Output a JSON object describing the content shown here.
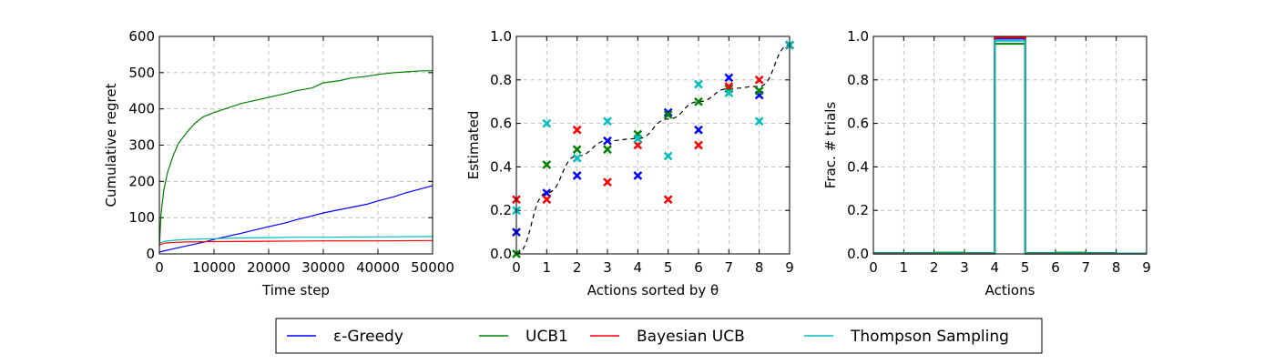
{
  "legend": {
    "entries": [
      {
        "label": "ε-Greedy",
        "color": "#0000ff"
      },
      {
        "label": "UCB1",
        "color": "#008000"
      },
      {
        "label": "Bayesian UCB",
        "color": "#ff0000"
      },
      {
        "label": "Thompson Sampling",
        "color": "#00bfbf"
      }
    ]
  },
  "chart_data": [
    {
      "type": "line",
      "xlabel": "Time step",
      "ylabel": "Cumulative regret",
      "xlim": [
        0,
        50000
      ],
      "ylim": [
        0,
        600
      ],
      "xticks": [
        0,
        10000,
        20000,
        30000,
        40000,
        50000
      ],
      "yticks": [
        0,
        100,
        200,
        300,
        400,
        500,
        600
      ],
      "grid": true,
      "series": [
        {
          "name": "ε-Greedy",
          "color": "#0000ff",
          "x": [
            0,
            2000,
            5000,
            8000,
            10000,
            12000,
            15000,
            18000,
            20000,
            23000,
            25000,
            28000,
            30000,
            33000,
            35000,
            38000,
            40000,
            43000,
            45000,
            48000,
            50000
          ],
          "y": [
            5,
            12,
            22,
            32,
            40,
            47,
            57,
            68,
            75,
            85,
            94,
            105,
            113,
            122,
            128,
            137,
            146,
            158,
            168,
            180,
            188
          ]
        },
        {
          "name": "UCB1",
          "color": "#008000",
          "x": [
            0,
            300,
            800,
            1500,
            2500,
            3500,
            5000,
            6500,
            8000,
            10000,
            12000,
            15000,
            18000,
            20000,
            23000,
            25000,
            28000,
            30000,
            33000,
            35000,
            38000,
            40000,
            43000,
            45000,
            48000,
            50000
          ],
          "y": [
            20,
            110,
            175,
            225,
            270,
            305,
            335,
            360,
            378,
            390,
            400,
            415,
            425,
            432,
            442,
            450,
            458,
            472,
            478,
            485,
            490,
            495,
            500,
            502,
            505,
            505
          ]
        },
        {
          "name": "Bayesian UCB",
          "color": "#ff0000",
          "x": [
            0,
            1000,
            3000,
            5000,
            10000,
            20000,
            30000,
            40000,
            50000
          ],
          "y": [
            25,
            30,
            32,
            33,
            34,
            35,
            36,
            36,
            37
          ]
        },
        {
          "name": "Thompson Sampling",
          "color": "#00bfbf",
          "x": [
            0,
            1000,
            3000,
            5000,
            10000,
            15000,
            20000,
            25000,
            30000,
            40000,
            50000
          ],
          "y": [
            30,
            35,
            38,
            40,
            42,
            44,
            45,
            46,
            46,
            47,
            48
          ]
        }
      ]
    },
    {
      "type": "scatter",
      "xlabel": "Actions sorted by θ",
      "ylabel": "Estimated",
      "xlim": [
        0,
        9
      ],
      "ylim": [
        0,
        1.0
      ],
      "xticks": [
        0,
        1,
        2,
        3,
        4,
        5,
        6,
        7,
        8,
        9
      ],
      "yticks": [
        0.0,
        0.2,
        0.4,
        0.6,
        0.8,
        1.0
      ],
      "grid": true,
      "true_theta": {
        "x": [
          0,
          1,
          2,
          3,
          4,
          5,
          6,
          7,
          8,
          9
        ],
        "y": [
          0.0,
          0.28,
          0.45,
          0.52,
          0.53,
          0.62,
          0.7,
          0.76,
          0.77,
          0.96
        ]
      },
      "series": [
        {
          "name": "ε-Greedy",
          "color": "#0000ff",
          "x": [
            0,
            1,
            2,
            3,
            4,
            5,
            6,
            7,
            8,
            9
          ],
          "y": [
            0.1,
            0.28,
            0.36,
            0.52,
            0.36,
            0.65,
            0.57,
            0.81,
            0.73,
            0.96
          ]
        },
        {
          "name": "UCB1",
          "color": "#008000",
          "x": [
            0,
            1,
            2,
            3,
            4,
            5,
            6,
            7,
            8,
            9
          ],
          "y": [
            0.0,
            0.41,
            0.48,
            0.48,
            0.55,
            0.64,
            0.7,
            0.76,
            0.75,
            0.96
          ]
        },
        {
          "name": "Bayesian UCB",
          "color": "#ff0000",
          "x": [
            0,
            1,
            2,
            3,
            4,
            5,
            6,
            7,
            8,
            9
          ],
          "y": [
            0.25,
            0.25,
            0.57,
            0.33,
            0.5,
            0.25,
            0.5,
            0.77,
            0.8,
            0.96
          ]
        },
        {
          "name": "Thompson Sampling",
          "color": "#00bfbf",
          "x": [
            0,
            1,
            2,
            3,
            4,
            5,
            6,
            7,
            8,
            9
          ],
          "y": [
            0.2,
            0.6,
            0.44,
            0.61,
            0.53,
            0.45,
            0.78,
            0.74,
            0.61,
            0.96
          ]
        }
      ]
    },
    {
      "type": "line",
      "xlabel": "Actions",
      "ylabel": "Frac. # trials",
      "xlim": [
        0,
        9
      ],
      "ylim": [
        0,
        1.0
      ],
      "xticks": [
        0,
        1,
        2,
        3,
        4,
        5,
        6,
        7,
        8,
        9
      ],
      "yticks": [
        0.0,
        0.2,
        0.4,
        0.6,
        0.8,
        1.0
      ],
      "grid": true,
      "series": [
        {
          "name": "ε-Greedy",
          "color": "#0000ff",
          "x": [
            0,
            1,
            2,
            3,
            4,
            5,
            6,
            7,
            8,
            9
          ],
          "y": [
            0.002,
            0.002,
            0.002,
            0.002,
            0.99,
            0.002,
            0.002,
            0.002,
            0.002,
            0.002
          ]
        },
        {
          "name": "UCB1",
          "color": "#008000",
          "x": [
            0,
            1,
            2,
            3,
            4,
            5,
            6,
            7,
            8,
            9
          ],
          "y": [
            0.004,
            0.004,
            0.006,
            0.004,
            0.966,
            0.004,
            0.006,
            0.004,
            0.002,
            0.002
          ]
        },
        {
          "name": "Bayesian UCB",
          "color": "#ff0000",
          "x": [
            0,
            1,
            2,
            3,
            4,
            5,
            6,
            7,
            8,
            9
          ],
          "y": [
            0.001,
            0.001,
            0.001,
            0.001,
            0.995,
            0.001,
            0.001,
            0.001,
            0.001,
            0.001
          ]
        },
        {
          "name": "Thompson Sampling",
          "color": "#00bfbf",
          "x": [
            0,
            1,
            2,
            3,
            4,
            5,
            6,
            7,
            8,
            9
          ],
          "y": [
            0.002,
            0.002,
            0.002,
            0.002,
            0.98,
            0.002,
            0.002,
            0.002,
            0.002,
            0.002
          ]
        }
      ]
    }
  ]
}
